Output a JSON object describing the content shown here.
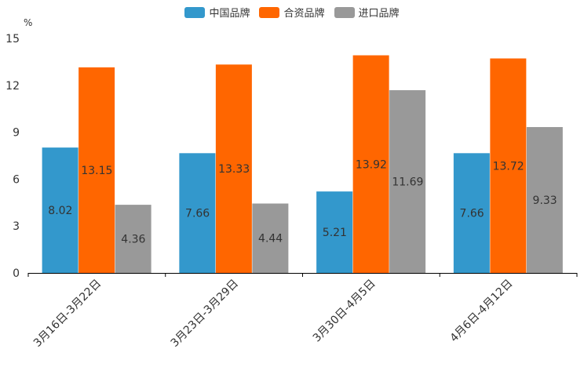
{
  "chart_data": {
    "type": "bar",
    "title": "",
    "ylabel": "%",
    "xlabel": "",
    "ylim": [
      0,
      15
    ],
    "yticks": [
      0,
      3,
      6,
      9,
      12,
      15
    ],
    "categories": [
      "3月16日-3月22日",
      "3月23日-3月29日",
      "3月30日-4月5日",
      "4月6日-4月12日"
    ],
    "series": [
      {
        "name": "中国品牌",
        "color": "#3398cc",
        "values": [
          8.02,
          7.66,
          5.21,
          7.66
        ]
      },
      {
        "name": "合资品牌",
        "color": "#ff6600",
        "values": [
          13.15,
          13.33,
          13.92,
          13.72
        ]
      },
      {
        "name": "进口品牌",
        "color": "#999999",
        "values": [
          4.36,
          4.44,
          11.69,
          9.33
        ]
      }
    ],
    "legend_position": "top-center"
  }
}
